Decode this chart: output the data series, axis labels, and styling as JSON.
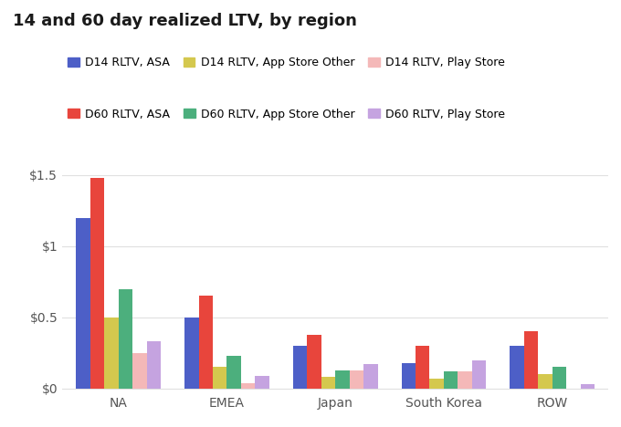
{
  "title": "14 and 60 day realized LTV, by region",
  "regions": [
    "NA",
    "EMEA",
    "Japan",
    "South Korea",
    "ROW"
  ],
  "series": [
    {
      "label": "D14 RLTV, ASA",
      "color": "#4d5fc7",
      "values": [
        1.2,
        0.5,
        0.3,
        0.18,
        0.3
      ]
    },
    {
      "label": "D60 RLTV, ASA",
      "color": "#e8453c",
      "values": [
        1.48,
        0.65,
        0.38,
        0.3,
        0.4
      ]
    },
    {
      "label": "D14 RLTV, App Store Other",
      "color": "#d4c84e",
      "values": [
        0.5,
        0.15,
        0.08,
        0.07,
        0.1
      ]
    },
    {
      "label": "D60 RLTV, App Store Other",
      "color": "#4caf7d",
      "values": [
        0.7,
        0.23,
        0.13,
        0.12,
        0.15
      ]
    },
    {
      "label": "D14 RLTV, Play Store",
      "color": "#f4b8b8",
      "values": [
        0.25,
        0.04,
        0.13,
        0.12,
        0.0
      ]
    },
    {
      "label": "D60 RLTV, Play Store",
      "color": "#c5a3e0",
      "values": [
        0.33,
        0.09,
        0.17,
        0.2,
        0.03
      ]
    }
  ],
  "legend_row1": [
    "D14 RLTV, ASA",
    "D14 RLTV, App Store Other",
    "D14 RLTV, Play Store"
  ],
  "legend_row2": [
    "D60 RLTV, ASA",
    "D60 RLTV, App Store Other",
    "D60 RLTV, Play Store"
  ],
  "ylim": [
    -0.03,
    1.62
  ],
  "yticks": [
    0,
    0.5,
    1.0,
    1.5
  ],
  "ytick_labels": [
    "$0",
    "$0.5",
    "$1",
    "$1.5"
  ],
  "background_color": "#ffffff",
  "grid_color": "#e0e0e0",
  "title_fontsize": 13,
  "tick_fontsize": 10,
  "legend_fontsize": 9,
  "bar_width": 0.13
}
